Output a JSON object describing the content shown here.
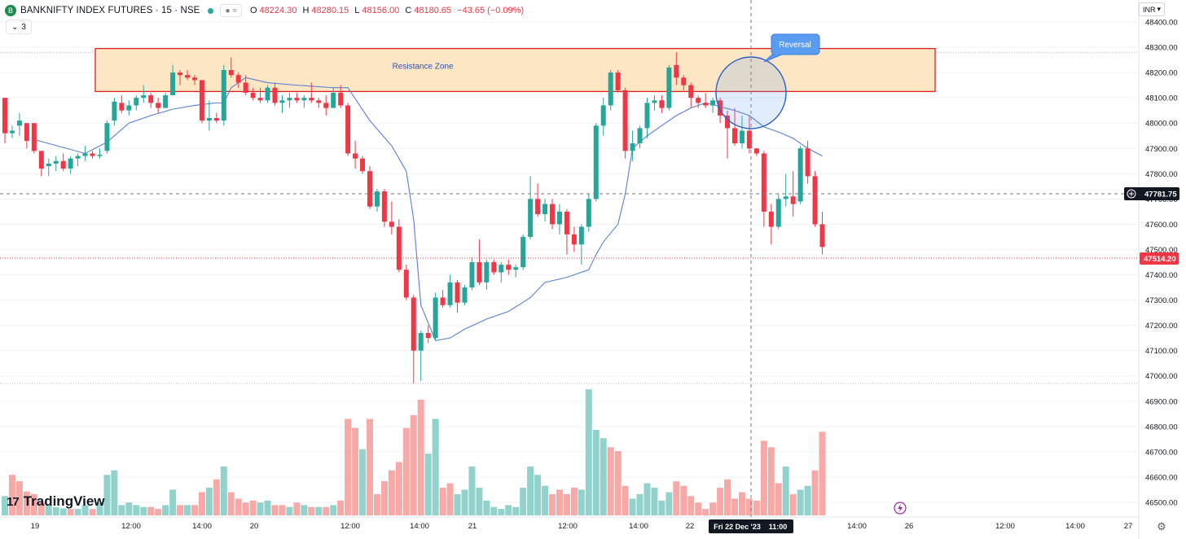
{
  "header": {
    "symbol": "BANKNIFTY INDEX FUTURES · 15 · NSE",
    "symbol_icon": "letter-icon",
    "toggle_text": "≈",
    "open_key": "O",
    "open_val": "48224.30",
    "high_key": "H",
    "high_val": "48280.15",
    "low_key": "L",
    "low_val": "48156.00",
    "close_key": "C",
    "close_val": "48180.65",
    "change": "−43.65 (−0.09%)",
    "indicator_count": "3",
    "currency": "INR"
  },
  "logo": {
    "text": "TradingView",
    "mark": "17"
  },
  "colors": {
    "up": "#26a69a",
    "down": "#f23645",
    "vol_up": "#92d2cc",
    "vol_down": "#f7a9a7",
    "vwap": "#5b7fd6",
    "zone_fill": "#fde6c4",
    "zone_border": "#e02020",
    "annotation": "#5b9cf3"
  },
  "chart_data": {
    "type": "candlestick",
    "title": "BANKNIFTY INDEX FUTURES · 15 · NSE",
    "ylim": [
      46460,
      48600
    ],
    "y_ticks": [
      48400,
      48300,
      48200,
      48100,
      48000,
      47900,
      47800,
      47700,
      47600,
      47500,
      47400,
      47300,
      47200,
      47100,
      47000,
      46900,
      46800,
      46700,
      46600,
      46500
    ],
    "x_labels": [
      "19",
      "12:00",
      "14:00",
      "20",
      "12:00",
      "14:00",
      "21",
      "12:00",
      "14:00",
      "22",
      "Fri 22 Dec '23",
      "11:00",
      "14:00",
      "26",
      "12:00",
      "14:00",
      "27"
    ],
    "crosshair": {
      "price": "47781.75",
      "time": "Fri 22 Dec '23   11:00"
    },
    "last_price": "47514.20",
    "resistance_zone": {
      "label": "Resistance Zone",
      "top": 48295,
      "bottom": 48125
    },
    "annotation": {
      "label": "Reversal"
    },
    "candles": [
      [
        48100,
        48100,
        47920,
        47960
      ],
      [
        47960,
        47990,
        47940,
        47970
      ],
      [
        47990,
        48040,
        47950,
        48010
      ],
      [
        48000,
        48000,
        47900,
        47930
      ],
      [
        48000,
        48000,
        47880,
        47890
      ],
      [
        47890,
        47890,
        47790,
        47820
      ],
      [
        47830,
        47860,
        47790,
        47840
      ],
      [
        47840,
        47870,
        47810,
        47850
      ],
      [
        47850,
        47880,
        47810,
        47820
      ],
      [
        47820,
        47870,
        47800,
        47860
      ],
      [
        47860,
        47880,
        47830,
        47870
      ],
      [
        47870,
        47910,
        47850,
        47880
      ],
      [
        47880,
        47890,
        47860,
        47870
      ],
      [
        47870,
        47900,
        47860,
        47875
      ],
      [
        47890,
        48010,
        47880,
        48000
      ],
      [
        48010,
        48100,
        47990,
        48085
      ],
      [
        48080,
        48110,
        48040,
        48050
      ],
      [
        48050,
        48090,
        48030,
        48070
      ],
      [
        48070,
        48110,
        48050,
        48100
      ],
      [
        48100,
        48150,
        48080,
        48110
      ],
      [
        48110,
        48120,
        48060,
        48080
      ],
      [
        48080,
        48100,
        48040,
        48060
      ],
      [
        48060,
        48120,
        48060,
        48110
      ],
      [
        48110,
        48230,
        48110,
        48200
      ],
      [
        48200,
        48210,
        48150,
        48190
      ],
      [
        48190,
        48210,
        48170,
        48180
      ],
      [
        48180,
        48190,
        48150,
        48170
      ],
      [
        48170,
        48170,
        48000,
        48010
      ],
      [
        48010,
        48090,
        47970,
        48020
      ],
      [
        48020,
        48040,
        48000,
        48010
      ],
      [
        48010,
        48230,
        47990,
        48210
      ],
      [
        48210,
        48260,
        48180,
        48190
      ],
      [
        48190,
        48200,
        48140,
        48160
      ],
      [
        48160,
        48190,
        48110,
        48120
      ],
      [
        48120,
        48140,
        48090,
        48100
      ],
      [
        48100,
        48140,
        48080,
        48090
      ],
      [
        48090,
        48150,
        48080,
        48140
      ],
      [
        48140,
        48160,
        48070,
        48080
      ],
      [
        48080,
        48110,
        48040,
        48090
      ],
      [
        48090,
        48120,
        48060,
        48100
      ],
      [
        48100,
        48120,
        48080,
        48090
      ],
      [
        48090,
        48110,
        48060,
        48100
      ],
      [
        48100,
        48160,
        48080,
        48090
      ],
      [
        48090,
        48100,
        48060,
        48080
      ],
      [
        48080,
        48110,
        48030,
        48060
      ],
      [
        48060,
        48140,
        48060,
        48120
      ],
      [
        48120,
        48150,
        48060,
        48070
      ],
      [
        48070,
        48080,
        47870,
        47880
      ],
      [
        47880,
        47930,
        47820,
        47860
      ],
      [
        47860,
        47870,
        47800,
        47810
      ],
      [
        47810,
        47830,
        47660,
        47670
      ],
      [
        47670,
        47740,
        47650,
        47730
      ],
      [
        47730,
        47740,
        47590,
        47610
      ],
      [
        47610,
        47690,
        47560,
        47590
      ],
      [
        47590,
        47620,
        47410,
        47420
      ],
      [
        47420,
        47440,
        47300,
        47310
      ],
      [
        47310,
        47320,
        46970,
        47100
      ],
      [
        47100,
        47180,
        46980,
        47170
      ],
      [
        47170,
        47200,
        47130,
        47150
      ],
      [
        47150,
        47330,
        47140,
        47310
      ],
      [
        47310,
        47340,
        47270,
        47280
      ],
      [
        47280,
        47400,
        47270,
        47370
      ],
      [
        47370,
        47380,
        47250,
        47290
      ],
      [
        47290,
        47360,
        47280,
        47350
      ],
      [
        47350,
        47470,
        47340,
        47450
      ],
      [
        47450,
        47540,
        47360,
        47370
      ],
      [
        47370,
        47460,
        47340,
        47450
      ],
      [
        47450,
        47460,
        47400,
        47410
      ],
      [
        47410,
        47450,
        47370,
        47440
      ],
      [
        47440,
        47460,
        47400,
        47420
      ],
      [
        47420,
        47440,
        47390,
        47430
      ],
      [
        47430,
        47560,
        47420,
        47550
      ],
      [
        47550,
        47790,
        47540,
        47700
      ],
      [
        47700,
        47760,
        47630,
        47640
      ],
      [
        47640,
        47700,
        47610,
        47680
      ],
      [
        47680,
        47700,
        47580,
        47600
      ],
      [
        47600,
        47680,
        47560,
        47650
      ],
      [
        47650,
        47660,
        47480,
        47560
      ],
      [
        47560,
        47590,
        47490,
        47520
      ],
      [
        47520,
        47600,
        47440,
        47590
      ],
      [
        47590,
        47720,
        47570,
        47700
      ],
      [
        47700,
        48000,
        47690,
        47990
      ],
      [
        47990,
        48100,
        47950,
        48070
      ],
      [
        48070,
        48210,
        48050,
        48200
      ],
      [
        48200,
        48210,
        48120,
        48130
      ],
      [
        48130,
        48140,
        47860,
        47890
      ],
      [
        47890,
        47970,
        47850,
        47920
      ],
      [
        47920,
        47990,
        47900,
        47980
      ],
      [
        47980,
        48100,
        47940,
        48080
      ],
      [
        48080,
        48110,
        48050,
        48090
      ],
      [
        48090,
        48110,
        48040,
        48060
      ],
      [
        48060,
        48230,
        48050,
        48220
      ],
      [
        48230,
        48280,
        48150,
        48180
      ],
      [
        48180,
        48190,
        48130,
        48150
      ],
      [
        48150,
        48160,
        48060,
        48100
      ],
      [
        48100,
        48110,
        48060,
        48080
      ],
      [
        48080,
        48120,
        48060,
        48070
      ],
      [
        48070,
        48100,
        48040,
        48090
      ],
      [
        48090,
        48100,
        48000,
        48030
      ],
      [
        48030,
        48050,
        47860,
        47980
      ],
      [
        47980,
        48060,
        47910,
        47920
      ],
      [
        47920,
        48030,
        47900,
        47970
      ],
      [
        47970,
        48030,
        47880,
        47900
      ],
      [
        47900,
        47900,
        47870,
        47880
      ],
      [
        47880,
        47890,
        47590,
        47650
      ],
      [
        47650,
        47680,
        47520,
        47590
      ],
      [
        47590,
        47720,
        47580,
        47700
      ],
      [
        47700,
        47800,
        47670,
        47710
      ],
      [
        47710,
        47810,
        47630,
        47680
      ],
      [
        47690,
        47910,
        47680,
        47900
      ],
      [
        47900,
        47930,
        47760,
        47790
      ],
      [
        47790,
        47810,
        47590,
        47600
      ],
      [
        47600,
        47650,
        47480,
        47510
      ]
    ],
    "vwap": [
      [
        4,
        47935
      ],
      [
        11,
        47880
      ],
      [
        14,
        47925
      ],
      [
        17,
        48000
      ],
      [
        20,
        48030
      ],
      [
        23,
        48055
      ],
      [
        26,
        48070
      ],
      [
        29,
        48080
      ],
      [
        30,
        48080
      ],
      [
        31,
        48140
      ],
      [
        33,
        48180
      ],
      [
        36,
        48160
      ],
      [
        40,
        48150
      ],
      [
        45,
        48140
      ],
      [
        47,
        48140
      ],
      [
        50,
        48010
      ],
      [
        53,
        47910
      ],
      [
        55,
        47810
      ],
      [
        56,
        47620
      ],
      [
        57,
        47280
      ],
      [
        59,
        47140
      ],
      [
        61,
        47150
      ],
      [
        63,
        47185
      ],
      [
        66,
        47225
      ],
      [
        69,
        47255
      ],
      [
        72,
        47310
      ],
      [
        74,
        47370
      ],
      [
        77,
        47390
      ],
      [
        80,
        47420
      ],
      [
        81,
        47480
      ],
      [
        82,
        47530
      ],
      [
        84,
        47600
      ],
      [
        85,
        47720
      ],
      [
        86,
        47900
      ],
      [
        88,
        47950
      ],
      [
        90,
        47990
      ],
      [
        92,
        48030
      ],
      [
        94,
        48060
      ],
      [
        96,
        48080
      ],
      [
        98,
        48065
      ],
      [
        100,
        48050
      ],
      [
        102,
        48030
      ],
      [
        104,
        47985
      ],
      [
        106,
        47965
      ],
      [
        108,
        47940
      ],
      [
        110,
        47900
      ],
      [
        112,
        47870
      ]
    ],
    "volume": [
      [
        30,
        1
      ],
      [
        63,
        0
      ],
      [
        53,
        0
      ],
      [
        37,
        0
      ],
      [
        33,
        0
      ],
      [
        20,
        0
      ],
      [
        16,
        1
      ],
      [
        13,
        1
      ],
      [
        11,
        1
      ],
      [
        10,
        0
      ],
      [
        10,
        1
      ],
      [
        16,
        1
      ],
      [
        10,
        0
      ],
      [
        20,
        1
      ],
      [
        63,
        1
      ],
      [
        70,
        1
      ],
      [
        16,
        1
      ],
      [
        20,
        1
      ],
      [
        16,
        1
      ],
      [
        13,
        1
      ],
      [
        13,
        0
      ],
      [
        10,
        0
      ],
      [
        16,
        1
      ],
      [
        40,
        1
      ],
      [
        16,
        0
      ],
      [
        16,
        1
      ],
      [
        16,
        0
      ],
      [
        36,
        0
      ],
      [
        43,
        1
      ],
      [
        56,
        0
      ],
      [
        76,
        1
      ],
      [
        36,
        0
      ],
      [
        26,
        0
      ],
      [
        20,
        0
      ],
      [
        23,
        0
      ],
      [
        20,
        1
      ],
      [
        23,
        1
      ],
      [
        16,
        0
      ],
      [
        16,
        0
      ],
      [
        13,
        1
      ],
      [
        20,
        0
      ],
      [
        16,
        1
      ],
      [
        13,
        0
      ],
      [
        13,
        1
      ],
      [
        13,
        0
      ],
      [
        16,
        1
      ],
      [
        23,
        0
      ],
      [
        150,
        0
      ],
      [
        136,
        0
      ],
      [
        103,
        1
      ],
      [
        150,
        0
      ],
      [
        33,
        0
      ],
      [
        53,
        0
      ],
      [
        70,
        0
      ],
      [
        83,
        0
      ],
      [
        136,
        0
      ],
      [
        156,
        0
      ],
      [
        180,
        0
      ],
      [
        96,
        1
      ],
      [
        150,
        1
      ],
      [
        43,
        0
      ],
      [
        50,
        0
      ],
      [
        33,
        1
      ],
      [
        40,
        1
      ],
      [
        76,
        1
      ],
      [
        43,
        1
      ],
      [
        23,
        1
      ],
      [
        13,
        1
      ],
      [
        10,
        1
      ],
      [
        16,
        1
      ],
      [
        13,
        1
      ],
      [
        43,
        1
      ],
      [
        76,
        1
      ],
      [
        63,
        1
      ],
      [
        46,
        1
      ],
      [
        33,
        0
      ],
      [
        40,
        0
      ],
      [
        33,
        0
      ],
      [
        43,
        0
      ],
      [
        40,
        1
      ],
      [
        196,
        1
      ],
      [
        133,
        1
      ],
      [
        120,
        1
      ],
      [
        106,
        0
      ],
      [
        100,
        0
      ],
      [
        46,
        0
      ],
      [
        26,
        1
      ],
      [
        33,
        1
      ],
      [
        50,
        1
      ],
      [
        43,
        1
      ],
      [
        23,
        1
      ],
      [
        36,
        1
      ],
      [
        53,
        0
      ],
      [
        46,
        0
      ],
      [
        30,
        0
      ],
      [
        20,
        0
      ],
      [
        10,
        0
      ],
      [
        20,
        0
      ],
      [
        43,
        0
      ],
      [
        56,
        0
      ],
      [
        26,
        0
      ],
      [
        36,
        0
      ],
      [
        26,
        0
      ],
      [
        23,
        0
      ],
      [
        116,
        0
      ],
      [
        106,
        0
      ],
      [
        50,
        0
      ],
      [
        76,
        1
      ],
      [
        33,
        0
      ],
      [
        40,
        1
      ],
      [
        46,
        1
      ],
      [
        70,
        0
      ],
      [
        130,
        0
      ]
    ]
  }
}
